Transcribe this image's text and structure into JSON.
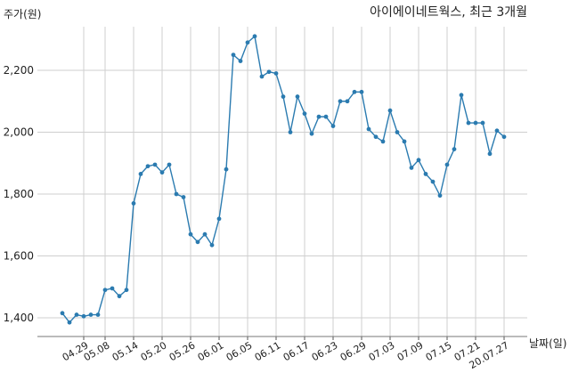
{
  "chart_data": {
    "type": "line",
    "title": "아이에이네트웍스, 최근 3개월",
    "ylabel": "주가(원)",
    "xlabel": "날짜(일)",
    "ylim": [
      1320,
      2350
    ],
    "yticks": [
      1400,
      1600,
      1800,
      2000,
      2200
    ],
    "ytick_labels": [
      "1,400",
      "1,600",
      "1,800",
      "2,000",
      "2,200"
    ],
    "grid": true,
    "x_tick_labels": [
      "04.29",
      "05.08",
      "05.14",
      "05.20",
      "05.26",
      "06.01",
      "06.05",
      "06.11",
      "06.17",
      "06.23",
      "06.29",
      "07.03",
      "07.09",
      "07.15",
      "07.21",
      "20.07.27"
    ],
    "x_tick_index": [
      3,
      6,
      10,
      14,
      18,
      22,
      26,
      30,
      34,
      38,
      42,
      46,
      50,
      54,
      58,
      62
    ],
    "series": [
      {
        "color": "#2b7bb0",
        "values": [
          1415,
          1385,
          1410,
          1405,
          1410,
          1410,
          1490,
          1495,
          1470,
          1490,
          1770,
          1865,
          1890,
          1895,
          1870,
          1895,
          1800,
          1790,
          1670,
          1645,
          1670,
          1635,
          1720,
          1880,
          2250,
          2230,
          2290,
          2310,
          2180,
          2195,
          2190,
          2115,
          2000,
          2115,
          2060,
          1995,
          2050,
          2050,
          2020,
          2100,
          2100,
          2130,
          2130,
          2010,
          1985,
          1970,
          2070,
          2000,
          1970,
          1885,
          1910,
          1865,
          1840,
          1795,
          1895,
          1945,
          2120,
          2030,
          2030,
          2030,
          1930,
          2005,
          1985
        ]
      }
    ]
  }
}
